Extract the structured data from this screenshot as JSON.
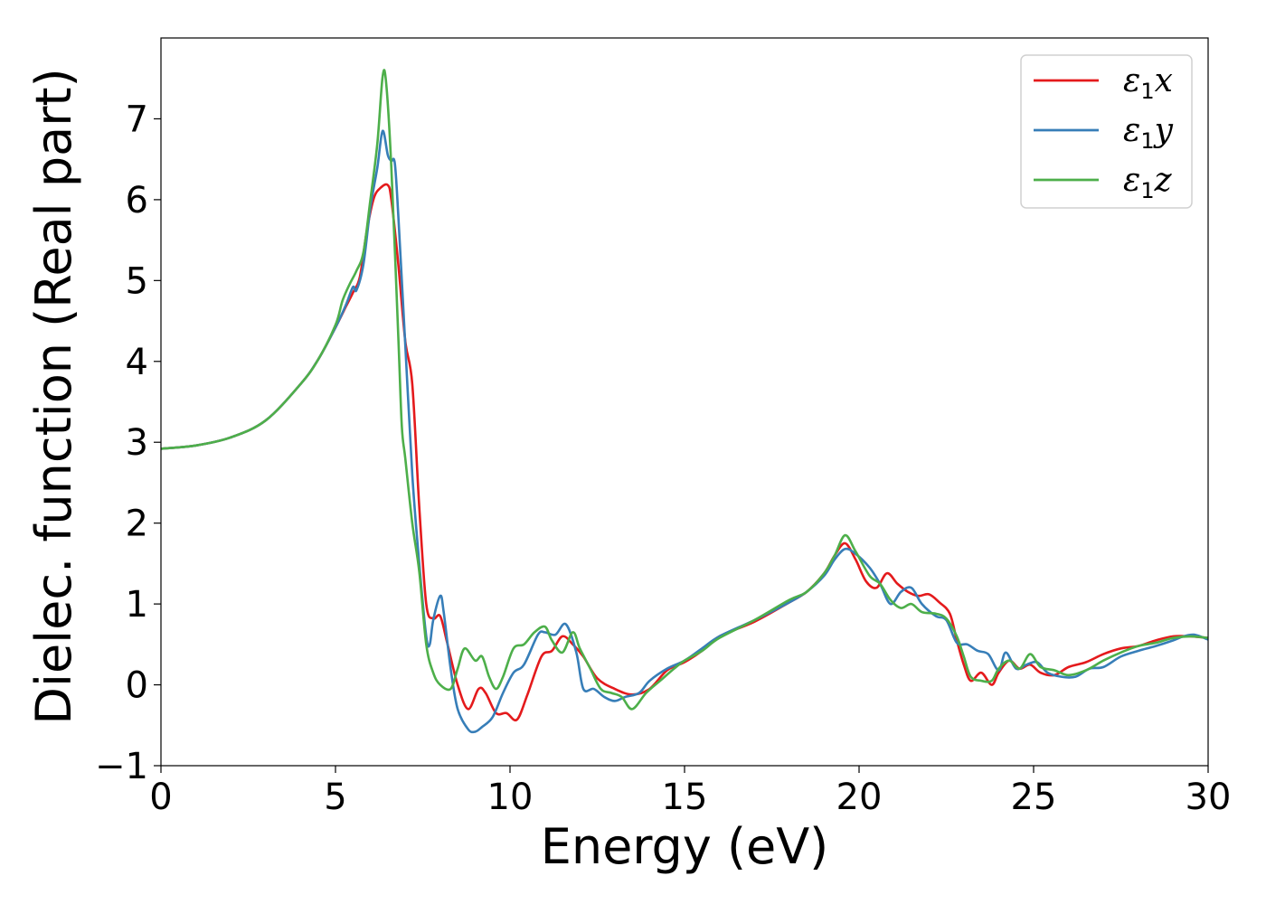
{
  "chart_data": {
    "type": "line",
    "title": "",
    "xlabel": "Energy (eV)",
    "ylabel": "Dielec. function (Real part)",
    "xlim": [
      0,
      30
    ],
    "ylim": [
      -1,
      8
    ],
    "xticks": [
      0,
      5,
      10,
      15,
      20,
      25,
      30
    ],
    "yticks": [
      -1,
      0,
      1,
      2,
      3,
      4,
      5,
      6,
      7
    ],
    "ytick_labels": [
      "−1",
      "0",
      "1",
      "2",
      "3",
      "4",
      "5",
      "6",
      "7"
    ],
    "grid": false,
    "legend_position": "top-right",
    "series": [
      {
        "name": "ε1x",
        "symbol": "ε",
        "subscript": "1",
        "suffix": "x",
        "color": "#e41a1c",
        "x": [
          0,
          1,
          2,
          3,
          4,
          4.5,
          5,
          5.3,
          5.5,
          5.7,
          5.9,
          6.1,
          6.3,
          6.5,
          6.6,
          6.8,
          7.0,
          7.2,
          7.4,
          7.6,
          7.8,
          8.0,
          8.2,
          8.5,
          8.8,
          9.1,
          9.3,
          9.6,
          9.9,
          10.2,
          10.5,
          10.9,
          11.2,
          11.5,
          11.8,
          12.1,
          12.5,
          13.0,
          13.5,
          14.0,
          14.5,
          15.0,
          15.5,
          16.0,
          17.0,
          18.0,
          18.5,
          19.0,
          19.3,
          19.6,
          19.9,
          20.2,
          20.5,
          20.8,
          21.1,
          21.4,
          21.7,
          22.0,
          22.3,
          22.6,
          22.8,
          23.0,
          23.2,
          23.5,
          23.8,
          24.0,
          24.3,
          24.6,
          24.9,
          25.2,
          25.6,
          26.0,
          26.5,
          27.0,
          27.5,
          28.0,
          28.5,
          29.0,
          29.5,
          30.0
        ],
        "values": [
          2.92,
          2.96,
          3.06,
          3.27,
          3.72,
          4.02,
          4.42,
          4.68,
          4.85,
          5.05,
          5.62,
          6.02,
          6.15,
          6.18,
          6.0,
          5.2,
          4.25,
          3.72,
          2.2,
          1.0,
          0.82,
          0.85,
          0.52,
          0.0,
          -0.3,
          -0.05,
          -0.1,
          -0.35,
          -0.35,
          -0.43,
          -0.12,
          0.35,
          0.42,
          0.6,
          0.5,
          0.35,
          0.08,
          -0.05,
          -0.12,
          -0.05,
          0.18,
          0.28,
          0.42,
          0.6,
          0.78,
          1.02,
          1.15,
          1.38,
          1.6,
          1.75,
          1.55,
          1.28,
          1.2,
          1.38,
          1.25,
          1.15,
          1.1,
          1.12,
          1.02,
          0.88,
          0.55,
          0.25,
          0.05,
          0.15,
          0.0,
          0.15,
          0.3,
          0.2,
          0.25,
          0.15,
          0.12,
          0.22,
          0.28,
          0.38,
          0.45,
          0.48,
          0.55,
          0.6,
          0.6,
          0.58
        ]
      },
      {
        "name": "ε1y",
        "symbol": "ε",
        "subscript": "1",
        "suffix": "y",
        "color": "#377eb8",
        "x": [
          0,
          1,
          2,
          3,
          4,
          4.5,
          5,
          5.3,
          5.5,
          5.6,
          5.8,
          6.0,
          6.2,
          6.35,
          6.5,
          6.6,
          6.7,
          6.8,
          7.0,
          7.2,
          7.4,
          7.6,
          7.7,
          7.8,
          8.0,
          8.1,
          8.3,
          8.5,
          8.8,
          9.0,
          9.2,
          9.5,
          9.8,
          10.1,
          10.4,
          10.8,
          11.0,
          11.3,
          11.6,
          11.9,
          12.1,
          12.4,
          12.7,
          13.0,
          13.3,
          13.7,
          14.0,
          14.5,
          15.0,
          15.5,
          16.0,
          17.0,
          18.0,
          18.5,
          19.0,
          19.3,
          19.6,
          19.9,
          20.3,
          20.6,
          20.9,
          21.2,
          21.5,
          21.8,
          22.2,
          22.5,
          22.8,
          23.1,
          23.4,
          23.7,
          24.0,
          24.2,
          24.5,
          24.8,
          25.1,
          25.4,
          25.8,
          26.2,
          26.6,
          27.0,
          27.5,
          28.0,
          28.5,
          29.0,
          29.3,
          29.6,
          30.0
        ],
        "values": [
          2.92,
          2.96,
          3.06,
          3.27,
          3.72,
          4.02,
          4.42,
          4.7,
          4.92,
          4.88,
          5.2,
          5.9,
          6.4,
          6.85,
          6.55,
          6.48,
          6.45,
          5.8,
          4.2,
          2.6,
          1.5,
          0.6,
          0.5,
          0.8,
          1.1,
          0.9,
          0.2,
          -0.3,
          -0.55,
          -0.58,
          -0.52,
          -0.4,
          -0.1,
          0.15,
          0.25,
          0.62,
          0.65,
          0.62,
          0.75,
          0.4,
          -0.05,
          -0.05,
          -0.15,
          -0.2,
          -0.15,
          -0.1,
          0.05,
          0.2,
          0.3,
          0.45,
          0.6,
          0.8,
          1.02,
          1.15,
          1.35,
          1.55,
          1.68,
          1.62,
          1.45,
          1.25,
          1.0,
          1.15,
          1.2,
          1.0,
          0.85,
          0.8,
          0.52,
          0.5,
          0.42,
          0.38,
          0.18,
          0.4,
          0.2,
          0.25,
          0.28,
          0.15,
          0.1,
          0.1,
          0.2,
          0.22,
          0.35,
          0.42,
          0.48,
          0.55,
          0.6,
          0.62,
          0.56
        ]
      },
      {
        "name": "ε1z",
        "symbol": "ε",
        "subscript": "1",
        "suffix": "z",
        "color": "#4daf4a",
        "x": [
          0,
          1,
          2,
          3,
          4,
          4.5,
          5,
          5.2,
          5.4,
          5.6,
          5.8,
          6.0,
          6.2,
          6.35,
          6.45,
          6.6,
          6.8,
          6.9,
          7.0,
          7.2,
          7.4,
          7.6,
          7.8,
          8.0,
          8.3,
          8.5,
          8.7,
          9.0,
          9.2,
          9.4,
          9.6,
          9.8,
          10.1,
          10.4,
          10.7,
          11.0,
          11.2,
          11.5,
          11.8,
          12.0,
          12.3,
          12.6,
          12.9,
          13.2,
          13.5,
          13.9,
          14.3,
          14.7,
          15.0,
          15.5,
          16.0,
          17.0,
          18.0,
          18.5,
          19.0,
          19.3,
          19.6,
          19.9,
          20.3,
          20.6,
          20.9,
          21.2,
          21.5,
          21.8,
          22.2,
          22.5,
          22.8,
          23.0,
          23.2,
          23.5,
          23.8,
          24.0,
          24.3,
          24.6,
          24.9,
          25.2,
          25.6,
          26.0,
          26.5,
          27.0,
          27.5,
          28.0,
          28.5,
          29.0,
          29.5,
          30.0
        ],
        "values": [
          2.92,
          2.96,
          3.06,
          3.27,
          3.72,
          4.02,
          4.45,
          4.75,
          4.95,
          5.12,
          5.35,
          6.0,
          6.7,
          7.52,
          7.45,
          6.4,
          4.3,
          3.2,
          2.8,
          2.0,
          1.4,
          0.5,
          0.15,
          0.0,
          -0.05,
          0.2,
          0.45,
          0.3,
          0.35,
          0.1,
          -0.05,
          0.1,
          0.45,
          0.5,
          0.65,
          0.72,
          0.55,
          0.4,
          0.65,
          0.45,
          0.2,
          -0.05,
          -0.1,
          -0.15,
          -0.3,
          -0.1,
          0.05,
          0.2,
          0.3,
          0.42,
          0.58,
          0.8,
          1.05,
          1.15,
          1.38,
          1.6,
          1.85,
          1.65,
          1.35,
          1.25,
          1.05,
          0.95,
          1.0,
          0.9,
          0.88,
          0.82,
          0.6,
          0.35,
          0.1,
          0.05,
          0.05,
          0.2,
          0.3,
          0.2,
          0.38,
          0.22,
          0.18,
          0.12,
          0.18,
          0.3,
          0.4,
          0.48,
          0.52,
          0.58,
          0.6,
          0.58
        ]
      }
    ]
  }
}
